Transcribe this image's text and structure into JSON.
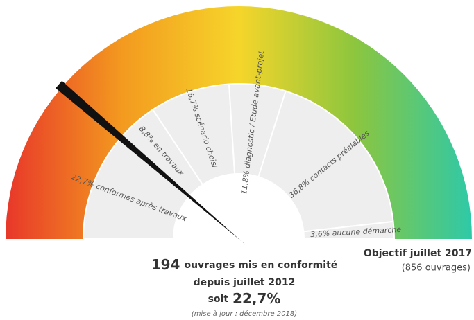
{
  "chart_data": {
    "type": "gauge",
    "segments": [
      {
        "label": "22,7% conformes après travaux",
        "value": 22.7
      },
      {
        "label": "8,8% en travaux",
        "value": 8.8
      },
      {
        "label": "16,7% scénario choisi",
        "value": 16.7
      },
      {
        "label": "11,8% diagnostic / Etude avant-projet",
        "value": 11.8
      },
      {
        "label": "36,8% contacts préalables",
        "value": 36.8
      },
      {
        "label": "3,6% aucune démarche",
        "value": 3.6
      }
    ],
    "colors": [
      "#e8372a",
      "#f39a1f",
      "#f6d52a",
      "#8cc63e",
      "#2ec9a8"
    ],
    "headline": {
      "count": "194",
      "text": "ouvrages mis en conformité",
      "line2": "depuis juillet 2012",
      "soit": "soit",
      "percent": "22,7%"
    },
    "update": "(mise à jour : décembre 2018)",
    "objective": {
      "title": "Objectif juillet 2017",
      "detail": "(856 ouvrages)"
    }
  }
}
